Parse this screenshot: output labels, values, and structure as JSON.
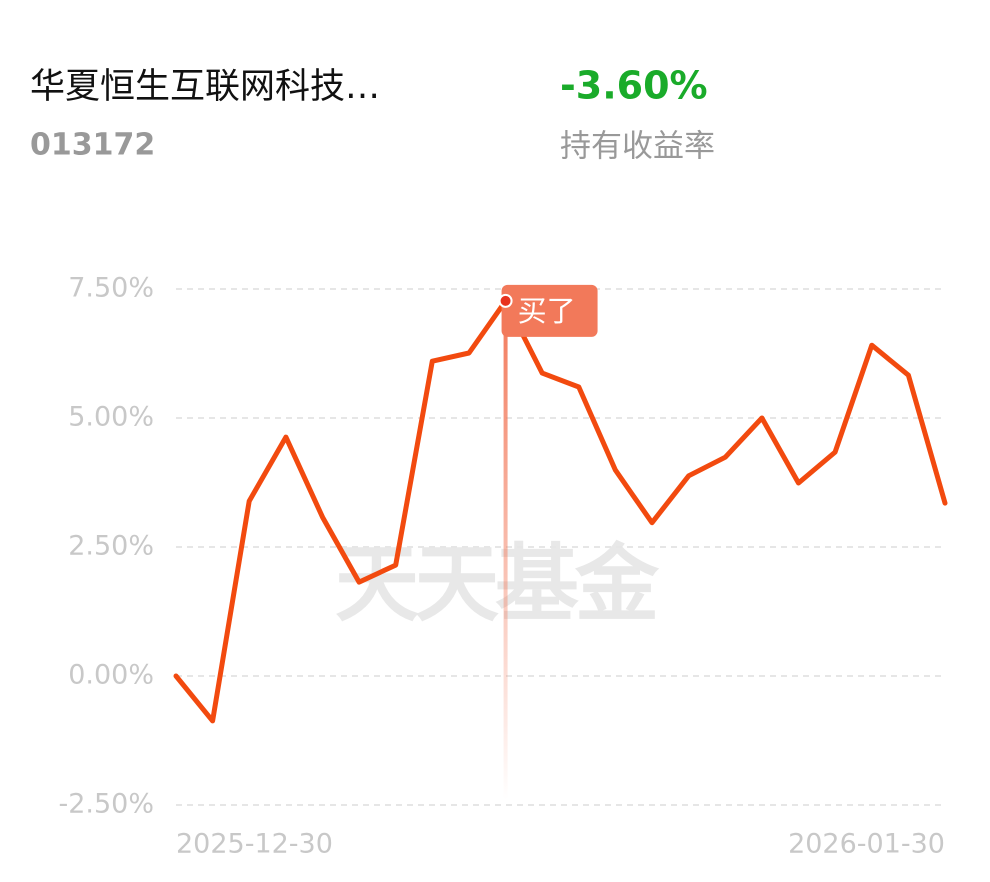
{
  "header": {
    "title": "华夏恒生互联网科技…",
    "code": "013172",
    "return": "-3.60%",
    "return_label": "持有收益率"
  },
  "chart_data": {
    "type": "line",
    "watermark": "天天基金",
    "categories": [
      "2025-12-30",
      null,
      null,
      null,
      null,
      null,
      null,
      null,
      null,
      null,
      null,
      null,
      null,
      null,
      null,
      null,
      null,
      null,
      null,
      null,
      null,
      "2026-01-30"
    ],
    "values": [
      0.0,
      -0.87,
      3.39,
      4.63,
      3.08,
      1.82,
      2.15,
      6.1,
      6.26,
      7.27,
      5.87,
      5.6,
      3.99,
      2.97,
      3.88,
      4.24,
      5.0,
      3.74,
      4.34,
      6.41,
      5.83,
      3.35
    ],
    "color": "#f24a0f",
    "ylim": [
      -2.5,
      7.5
    ],
    "yticks": [
      {
        "value": 7.5,
        "label": "7.50%"
      },
      {
        "value": 5,
        "label": "5.00%"
      },
      {
        "value": 2.5,
        "label": "2.50%"
      },
      {
        "value": 0,
        "label": "0.00%"
      },
      {
        "value": -2.5,
        "label": "-2.50%"
      }
    ],
    "grid": true,
    "annotation": {
      "text": "买了",
      "index": 9
    }
  }
}
